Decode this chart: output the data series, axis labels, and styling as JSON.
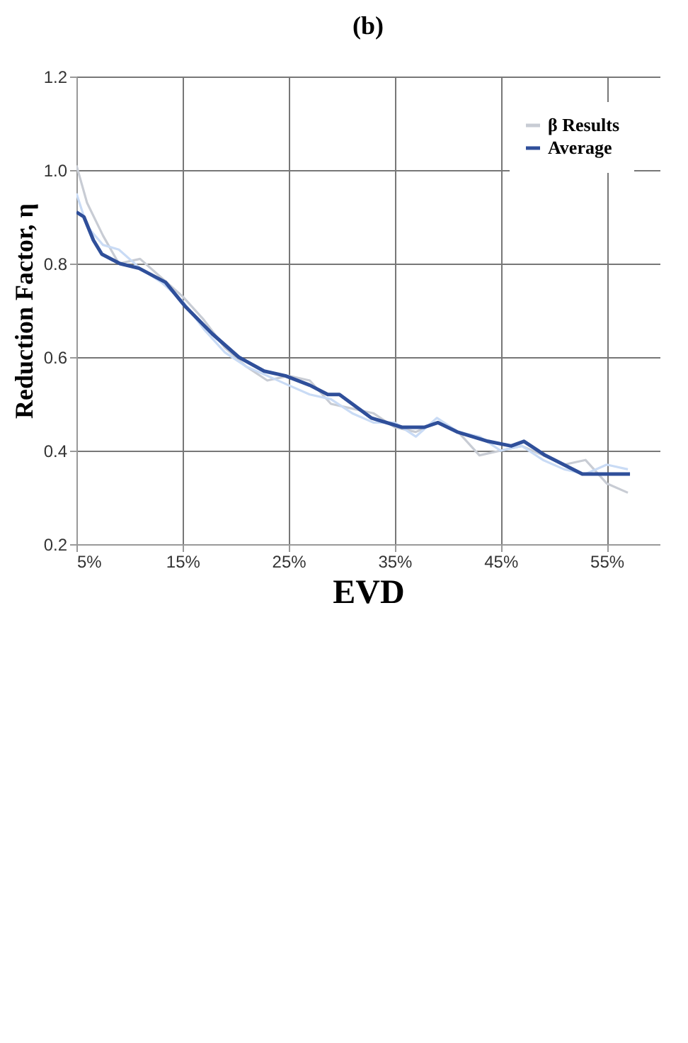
{
  "chart_data": {
    "type": "line",
    "title": "(b)",
    "xlabel": "EVD",
    "ylabel": "Reduction Factor, η",
    "xlim": [
      5,
      60
    ],
    "xticks": [
      {
        "value": 5,
        "label": "5%"
      },
      {
        "value": 15,
        "label": "15%"
      },
      {
        "value": 25,
        "label": "25%"
      },
      {
        "value": 35,
        "label": "35%"
      },
      {
        "value": 45,
        "label": "45%"
      },
      {
        "value": 55,
        "label": "55%"
      }
    ],
    "ylim": [
      0.2,
      1.2
    ],
    "yticks": [
      0.2,
      0.4,
      0.6,
      0.8,
      {
        "value": 1,
        "label": "1.0"
      },
      1.2
    ],
    "grid": true,
    "legend": "top right",
    "line_style": "solid",
    "series": [
      {
        "name": "β Results",
        "color": "#c8ccd4",
        "x": [
          5,
          6,
          7.5,
          9,
          11,
          13,
          15,
          17,
          19,
          21,
          23,
          25,
          27,
          29,
          31,
          33,
          35,
          37,
          39,
          41,
          43,
          45,
          47,
          49,
          51,
          53,
          55,
          57
        ],
        "values": [
          1.01,
          0.93,
          0.86,
          0.8,
          0.81,
          0.77,
          0.73,
          0.68,
          0.62,
          0.58,
          0.55,
          0.56,
          0.55,
          0.5,
          0.49,
          0.48,
          0.45,
          0.44,
          0.46,
          0.44,
          0.39,
          0.4,
          0.41,
          0.39,
          0.37,
          0.38,
          0.33,
          0.31
        ]
      },
      {
        "color": "#c9dbf5",
        "x": [
          5,
          6,
          7.5,
          9,
          11,
          13,
          15,
          17,
          19,
          21,
          23,
          25,
          27,
          29,
          31,
          33,
          35,
          37,
          39,
          41,
          43,
          45,
          47,
          49,
          51,
          53,
          55,
          57
        ],
        "values": [
          0.95,
          0.88,
          0.84,
          0.83,
          0.79,
          0.76,
          0.72,
          0.66,
          0.61,
          0.58,
          0.56,
          0.54,
          0.52,
          0.51,
          0.48,
          0.46,
          0.46,
          0.43,
          0.47,
          0.44,
          0.43,
          0.4,
          0.41,
          0.38,
          0.36,
          0.35,
          0.37,
          0.36
        ]
      },
      {
        "name": "Average",
        "color": "#2f4f9a",
        "x": [
          5,
          5.7,
          6.6,
          7.4,
          9.1,
          10.9,
          13.4,
          15.2,
          17.8,
          20.3,
          22.7,
          24.7,
          27,
          28.7,
          29.8,
          32.8,
          35.7,
          37.8,
          39.1,
          40.9,
          43.8,
          46,
          47.2,
          49.2,
          52.7,
          54.7,
          57.2
        ],
        "values": [
          0.91,
          0.9,
          0.85,
          0.82,
          0.8,
          0.79,
          0.76,
          0.71,
          0.65,
          0.6,
          0.57,
          0.56,
          0.54,
          0.52,
          0.52,
          0.47,
          0.45,
          0.45,
          0.46,
          0.44,
          0.42,
          0.41,
          0.42,
          0.39,
          0.35,
          0.35,
          0.35
        ]
      }
    ]
  }
}
